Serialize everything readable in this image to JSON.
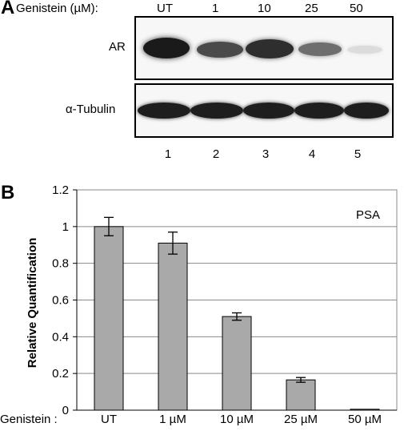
{
  "panel_a": {
    "letter": "A",
    "treatment_header": "Genistein (µM):",
    "doses": [
      "UT",
      "1",
      "10",
      "25",
      "50"
    ],
    "blot_labels": {
      "ar": "AR",
      "tubulin": "α-Tubulin"
    },
    "lane_numbers": [
      "1",
      "2",
      "3",
      "4",
      "5"
    ]
  },
  "panel_b": {
    "letter": "B",
    "x_prefix": "Genistein :"
  },
  "chart_data": {
    "type": "bar",
    "categories": [
      "UT",
      "1 µM",
      "10 µM",
      "25 µM",
      "50 µM"
    ],
    "values": [
      1.0,
      0.91,
      0.51,
      0.165,
      0.005
    ],
    "errors": [
      0.05,
      0.06,
      0.02,
      0.013,
      0.0
    ],
    "ylabel": "Relative Quantification",
    "ylim": [
      0,
      1.2
    ],
    "yticks": [
      "0",
      "0.2",
      "0.4",
      "0.6",
      "0.8",
      "1",
      "1.2"
    ],
    "annotation": "PSA",
    "grid": true,
    "bar_color": "#a9a9a9"
  }
}
